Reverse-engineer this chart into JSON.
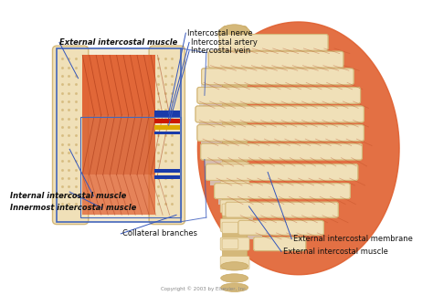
{
  "background_color": "#ffffff",
  "copyright": "Copyright © 2003 by Elsevier, Inc.",
  "labels": {
    "external_intercostal_muscle_top": "External intercostal muscle",
    "intercostal_nerve": "Intercostal nerve",
    "intercostal_artery": "Intercostal artery",
    "intercostal_vein": "Intercostal vein",
    "internal_intercostal_muscle": "Internal intercostal muscle",
    "innermost_intercostal_muscle": "Innermost intercostal muscle",
    "collateral_branches": "Collateral branches",
    "external_intercostal_membrane": "External intercostal membrane",
    "external_intercostal_muscle_bottom": "External intercostal muscle"
  },
  "colors": {
    "muscle_orange": "#E06030",
    "muscle_orange2": "#D85828",
    "muscle_light": "#E8906A",
    "bone_tan": "#D4B87A",
    "bone_light": "#EDD8A8",
    "bone_cream": "#F0E0B8",
    "membrane_blue": "#B8CED8",
    "nerve_blue_dark": "#1A3BAA",
    "artery_red": "#CC1800",
    "vein_blue": "#223388",
    "line_color": "#3355BB",
    "text_color": "#111111",
    "bg": "#ffffff",
    "box_line": "#4466BB",
    "spine_tan": "#C8A860"
  },
  "figsize": [
    4.74,
    3.35
  ],
  "dpi": 100
}
